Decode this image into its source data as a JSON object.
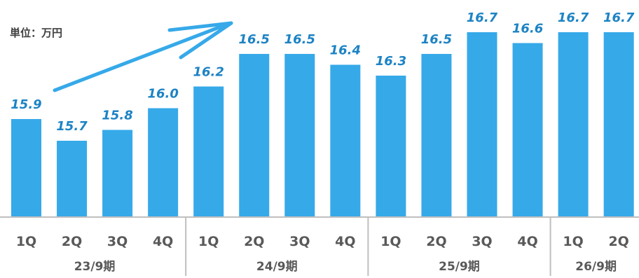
{
  "unit_label": "単位：万円",
  "colors": {
    "bar": "#36A9E9",
    "label": "#1D83C4",
    "arrow": "#36A9E9",
    "axis": "#BFBFBF",
    "text": "#595959"
  },
  "chart_data": {
    "type": "bar",
    "categories": [
      "1Q",
      "2Q",
      "3Q",
      "4Q",
      "1Q",
      "2Q",
      "3Q",
      "4Q",
      "1Q",
      "2Q",
      "3Q",
      "4Q",
      "1Q",
      "2Q"
    ],
    "periods": [
      {
        "label": "23/9期",
        "count": 4
      },
      {
        "label": "24/9期",
        "count": 4
      },
      {
        "label": "25/9期",
        "count": 4
      },
      {
        "label": "26/9期",
        "count": 2
      }
    ],
    "values": [
      15.9,
      15.7,
      15.8,
      16.0,
      16.2,
      16.5,
      16.5,
      16.4,
      16.3,
      16.5,
      16.7,
      16.6,
      16.7,
      16.7
    ],
    "value_labels": [
      "15.9",
      "15.7",
      "15.8",
      "16.0",
      "16.2",
      "16.5",
      "16.5",
      "16.4",
      "16.3",
      "16.5",
      "16.7",
      "16.6",
      "16.7",
      "16.7"
    ],
    "ylabel": "単位：万円",
    "grid": false,
    "trend_arrow": "up"
  }
}
